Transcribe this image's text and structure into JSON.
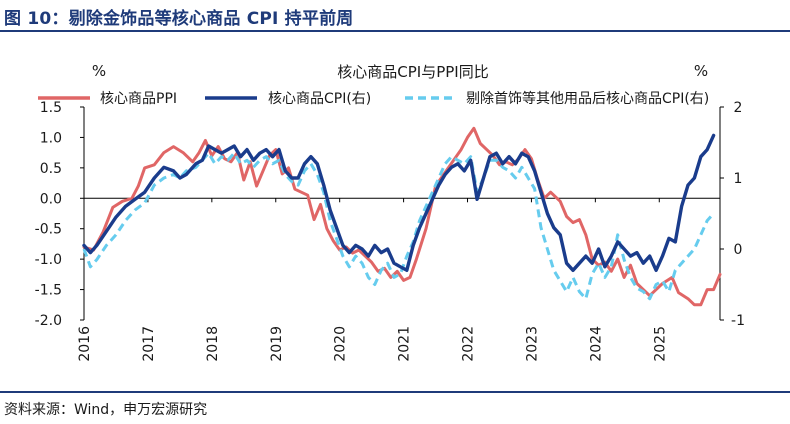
{
  "header": {
    "title": "图 10：剔除金饰品等核心商品 CPI 持平前周"
  },
  "footer": {
    "source": "资料来源：Wind，申万宏源研究"
  },
  "chart_data": {
    "type": "line",
    "title": "核心商品CPI与PPI同比",
    "left_unit": "%",
    "right_unit": "%",
    "left_ylim": [
      -2.0,
      1.5
    ],
    "right_ylim": [
      -1,
      2
    ],
    "left_ticks": [
      "1.5",
      "1.0",
      "0.5",
      "0.0",
      "-0.5",
      "-1.0",
      "-1.5",
      "-2.0"
    ],
    "right_ticks": [
      "2",
      "1",
      "0",
      "-1"
    ],
    "x_ticks": [
      "2016",
      "2017",
      "2018",
      "2019",
      "2020",
      "2021",
      "2022",
      "2023",
      "2024",
      "2025"
    ],
    "x_range": [
      2016.0,
      2025.95
    ],
    "legend": [
      "核心商品PPI",
      "核心商品CPI(右)",
      "剔除首饰等其他用品后核心商品CPI(右)"
    ],
    "series": [
      {
        "name": "核心商品PPI",
        "axis": "left",
        "color": "#e06666",
        "style": "solid",
        "points": [
          [
            2016.0,
            -0.8
          ],
          [
            2016.15,
            -0.85
          ],
          [
            2016.3,
            -0.55
          ],
          [
            2016.45,
            -0.15
          ],
          [
            2016.6,
            -0.05
          ],
          [
            2016.75,
            0.0
          ],
          [
            2016.85,
            0.2
          ],
          [
            2016.95,
            0.5
          ],
          [
            2017.1,
            0.55
          ],
          [
            2017.25,
            0.75
          ],
          [
            2017.4,
            0.85
          ],
          [
            2017.55,
            0.75
          ],
          [
            2017.7,
            0.6
          ],
          [
            2017.8,
            0.75
          ],
          [
            2017.9,
            0.95
          ],
          [
            2018.0,
            0.7
          ],
          [
            2018.1,
            0.85
          ],
          [
            2018.2,
            0.65
          ],
          [
            2018.3,
            0.6
          ],
          [
            2018.4,
            0.75
          ],
          [
            2018.5,
            0.3
          ],
          [
            2018.6,
            0.6
          ],
          [
            2018.7,
            0.2
          ],
          [
            2018.8,
            0.45
          ],
          [
            2018.9,
            0.7
          ],
          [
            2019.0,
            0.8
          ],
          [
            2019.1,
            0.4
          ],
          [
            2019.2,
            0.5
          ],
          [
            2019.3,
            0.15
          ],
          [
            2019.4,
            0.1
          ],
          [
            2019.5,
            0.05
          ],
          [
            2019.6,
            -0.35
          ],
          [
            2019.7,
            -0.1
          ],
          [
            2019.8,
            -0.5
          ],
          [
            2019.9,
            -0.7
          ],
          [
            2020.0,
            -0.85
          ],
          [
            2020.1,
            -0.8
          ],
          [
            2020.2,
            -0.9
          ],
          [
            2020.3,
            -0.85
          ],
          [
            2020.4,
            -0.95
          ],
          [
            2020.5,
            -1.05
          ],
          [
            2020.6,
            -1.2
          ],
          [
            2020.7,
            -1.15
          ],
          [
            2020.8,
            -1.3
          ],
          [
            2020.9,
            -1.2
          ],
          [
            2021.0,
            -1.35
          ],
          [
            2021.1,
            -1.3
          ],
          [
            2021.2,
            -1.0
          ],
          [
            2021.35,
            -0.5
          ],
          [
            2021.5,
            0.2
          ],
          [
            2021.6,
            0.35
          ],
          [
            2021.7,
            0.5
          ],
          [
            2021.8,
            0.65
          ],
          [
            2021.9,
            0.8
          ],
          [
            2022.0,
            1.0
          ],
          [
            2022.1,
            1.15
          ],
          [
            2022.2,
            0.9
          ],
          [
            2022.3,
            0.8
          ],
          [
            2022.4,
            0.7
          ],
          [
            2022.5,
            0.55
          ],
          [
            2022.6,
            0.6
          ],
          [
            2022.7,
            0.55
          ],
          [
            2022.8,
            0.65
          ],
          [
            2022.9,
            0.8
          ],
          [
            2023.0,
            0.65
          ],
          [
            2023.1,
            0.3
          ],
          [
            2023.2,
            0.0
          ],
          [
            2023.3,
            0.1
          ],
          [
            2023.45,
            -0.05
          ],
          [
            2023.55,
            -0.3
          ],
          [
            2023.65,
            -0.4
          ],
          [
            2023.75,
            -0.35
          ],
          [
            2023.85,
            -0.6
          ],
          [
            2023.95,
            -1.0
          ],
          [
            2024.05,
            -1.1
          ],
          [
            2024.15,
            -1.05
          ],
          [
            2024.25,
            -1.2
          ],
          [
            2024.35,
            -1.0
          ],
          [
            2024.45,
            -1.3
          ],
          [
            2024.55,
            -1.1
          ],
          [
            2024.65,
            -1.4
          ],
          [
            2024.75,
            -1.5
          ],
          [
            2024.85,
            -1.6
          ],
          [
            2024.95,
            -1.5
          ],
          [
            2025.05,
            -1.4
          ],
          [
            2025.2,
            -1.3
          ],
          [
            2025.3,
            -1.55
          ],
          [
            2025.45,
            -1.65
          ],
          [
            2025.55,
            -1.75
          ],
          [
            2025.65,
            -1.75
          ],
          [
            2025.75,
            -1.5
          ],
          [
            2025.85,
            -1.5
          ],
          [
            2025.95,
            -1.25
          ]
        ]
      },
      {
        "name": "核心商品CPI(右)",
        "axis": "right",
        "color": "#1a3c8c",
        "style": "solid",
        "points": [
          [
            2016.0,
            0.05
          ],
          [
            2016.1,
            -0.05
          ],
          [
            2016.2,
            0.05
          ],
          [
            2016.35,
            0.25
          ],
          [
            2016.5,
            0.45
          ],
          [
            2016.65,
            0.6
          ],
          [
            2016.8,
            0.7
          ],
          [
            2016.95,
            0.8
          ],
          [
            2017.1,
            1.0
          ],
          [
            2017.25,
            1.15
          ],
          [
            2017.4,
            1.1
          ],
          [
            2017.5,
            1.0
          ],
          [
            2017.6,
            1.05
          ],
          [
            2017.75,
            1.2
          ],
          [
            2017.85,
            1.25
          ],
          [
            2017.95,
            1.45
          ],
          [
            2018.05,
            1.4
          ],
          [
            2018.15,
            1.35
          ],
          [
            2018.25,
            1.4
          ],
          [
            2018.35,
            1.45
          ],
          [
            2018.45,
            1.3
          ],
          [
            2018.55,
            1.4
          ],
          [
            2018.65,
            1.25
          ],
          [
            2018.75,
            1.35
          ],
          [
            2018.85,
            1.4
          ],
          [
            2018.95,
            1.3
          ],
          [
            2019.05,
            1.4
          ],
          [
            2019.15,
            1.1
          ],
          [
            2019.25,
            1.0
          ],
          [
            2019.35,
            1.0
          ],
          [
            2019.45,
            1.2
          ],
          [
            2019.55,
            1.3
          ],
          [
            2019.65,
            1.2
          ],
          [
            2019.75,
            0.9
          ],
          [
            2019.85,
            0.55
          ],
          [
            2019.95,
            0.3
          ],
          [
            2020.05,
            0.05
          ],
          [
            2020.15,
            -0.05
          ],
          [
            2020.25,
            0.05
          ],
          [
            2020.35,
            0.0
          ],
          [
            2020.45,
            -0.1
          ],
          [
            2020.55,
            0.05
          ],
          [
            2020.65,
            -0.05
          ],
          [
            2020.75,
            0.0
          ],
          [
            2020.85,
            -0.2
          ],
          [
            2020.95,
            -0.25
          ],
          [
            2021.05,
            -0.3
          ],
          [
            2021.15,
            0.05
          ],
          [
            2021.25,
            0.3
          ],
          [
            2021.35,
            0.5
          ],
          [
            2021.45,
            0.7
          ],
          [
            2021.55,
            0.9
          ],
          [
            2021.65,
            1.05
          ],
          [
            2021.75,
            1.15
          ],
          [
            2021.85,
            1.2
          ],
          [
            2021.95,
            1.1
          ],
          [
            2022.05,
            1.25
          ],
          [
            2022.15,
            0.7
          ],
          [
            2022.25,
            1.0
          ],
          [
            2022.35,
            1.3
          ],
          [
            2022.45,
            1.35
          ],
          [
            2022.55,
            1.2
          ],
          [
            2022.65,
            1.3
          ],
          [
            2022.75,
            1.2
          ],
          [
            2022.85,
            1.35
          ],
          [
            2022.95,
            1.3
          ],
          [
            2023.05,
            1.1
          ],
          [
            2023.15,
            0.8
          ],
          [
            2023.25,
            0.5
          ],
          [
            2023.35,
            0.3
          ],
          [
            2023.45,
            0.2
          ],
          [
            2023.55,
            -0.2
          ],
          [
            2023.65,
            -0.3
          ],
          [
            2023.75,
            -0.2
          ],
          [
            2023.85,
            -0.1
          ],
          [
            2023.95,
            -0.2
          ],
          [
            2024.05,
            0.0
          ],
          [
            2024.15,
            -0.25
          ],
          [
            2024.25,
            -0.1
          ],
          [
            2024.35,
            0.1
          ],
          [
            2024.45,
            0.0
          ],
          [
            2024.55,
            -0.1
          ],
          [
            2024.65,
            -0.05
          ],
          [
            2024.75,
            -0.2
          ],
          [
            2024.85,
            -0.1
          ],
          [
            2024.95,
            -0.3
          ],
          [
            2025.05,
            -0.1
          ],
          [
            2025.15,
            0.15
          ],
          [
            2025.25,
            0.1
          ],
          [
            2025.35,
            0.6
          ],
          [
            2025.45,
            0.9
          ],
          [
            2025.55,
            1.0
          ],
          [
            2025.65,
            1.3
          ],
          [
            2025.75,
            1.4
          ],
          [
            2025.85,
            1.6
          ]
        ]
      },
      {
        "name": "剔除首饰等其他用品后核心商品CPI(右)",
        "axis": "right",
        "color": "#66ccee",
        "style": "dashed",
        "points": [
          [
            2016.0,
            0.0
          ],
          [
            2016.1,
            -0.25
          ],
          [
            2016.2,
            -0.15
          ],
          [
            2016.35,
            0.05
          ],
          [
            2016.5,
            0.2
          ],
          [
            2016.65,
            0.4
          ],
          [
            2016.8,
            0.55
          ],
          [
            2016.95,
            0.65
          ],
          [
            2017.1,
            0.9
          ],
          [
            2017.25,
            1.0
          ],
          [
            2017.4,
            1.05
          ],
          [
            2017.5,
            1.0
          ],
          [
            2017.6,
            1.1
          ],
          [
            2017.75,
            1.15
          ],
          [
            2017.85,
            1.25
          ],
          [
            2017.95,
            1.35
          ],
          [
            2018.05,
            1.2
          ],
          [
            2018.15,
            1.3
          ],
          [
            2018.25,
            1.25
          ],
          [
            2018.35,
            1.35
          ],
          [
            2018.45,
            1.2
          ],
          [
            2018.55,
            1.25
          ],
          [
            2018.65,
            1.15
          ],
          [
            2018.75,
            1.25
          ],
          [
            2018.85,
            1.3
          ],
          [
            2018.95,
            1.2
          ],
          [
            2019.05,
            1.25
          ],
          [
            2019.15,
            1.05
          ],
          [
            2019.25,
            0.95
          ],
          [
            2019.35,
            0.9
          ],
          [
            2019.45,
            1.1
          ],
          [
            2019.55,
            1.2
          ],
          [
            2019.65,
            1.05
          ],
          [
            2019.75,
            0.8
          ],
          [
            2019.85,
            0.4
          ],
          [
            2019.95,
            0.15
          ],
          [
            2020.05,
            -0.1
          ],
          [
            2020.15,
            -0.25
          ],
          [
            2020.25,
            -0.1
          ],
          [
            2020.35,
            -0.2
          ],
          [
            2020.45,
            -0.4
          ],
          [
            2020.55,
            -0.5
          ],
          [
            2020.65,
            -0.3
          ],
          [
            2020.75,
            -0.2
          ],
          [
            2020.85,
            -0.4
          ],
          [
            2020.95,
            -0.35
          ],
          [
            2021.05,
            -0.1
          ],
          [
            2021.15,
            0.1
          ],
          [
            2021.25,
            0.4
          ],
          [
            2021.35,
            0.6
          ],
          [
            2021.45,
            0.8
          ],
          [
            2021.55,
            1.0
          ],
          [
            2021.65,
            1.2
          ],
          [
            2021.75,
            1.3
          ],
          [
            2021.85,
            1.25
          ],
          [
            2021.95,
            1.2
          ],
          [
            2022.05,
            1.3
          ],
          [
            2022.15,
            0.8
          ],
          [
            2022.25,
            1.0
          ],
          [
            2022.35,
            1.25
          ],
          [
            2022.45,
            1.25
          ],
          [
            2022.55,
            1.15
          ],
          [
            2022.65,
            1.1
          ],
          [
            2022.75,
            1.0
          ],
          [
            2022.85,
            1.15
          ],
          [
            2022.95,
            1.0
          ],
          [
            2023.05,
            0.85
          ],
          [
            2023.15,
            0.3
          ],
          [
            2023.25,
            0.0
          ],
          [
            2023.35,
            -0.3
          ],
          [
            2023.45,
            -0.45
          ],
          [
            2023.55,
            -0.6
          ],
          [
            2023.65,
            -0.4
          ],
          [
            2023.75,
            -0.6
          ],
          [
            2023.85,
            -0.7
          ],
          [
            2023.95,
            -0.35
          ],
          [
            2024.05,
            -0.2
          ],
          [
            2024.15,
            -0.4
          ],
          [
            2024.25,
            -0.25
          ],
          [
            2024.35,
            0.2
          ],
          [
            2024.45,
            -0.15
          ],
          [
            2024.55,
            -0.4
          ],
          [
            2024.65,
            -0.55
          ],
          [
            2024.75,
            -0.6
          ],
          [
            2024.85,
            -0.7
          ],
          [
            2024.95,
            -0.5
          ],
          [
            2025.05,
            -0.45
          ],
          [
            2025.15,
            -0.6
          ],
          [
            2025.25,
            -0.3
          ],
          [
            2025.35,
            -0.2
          ],
          [
            2025.45,
            -0.1
          ],
          [
            2025.55,
            0.0
          ],
          [
            2025.65,
            0.2
          ],
          [
            2025.75,
            0.4
          ],
          [
            2025.85,
            0.5
          ]
        ]
      }
    ]
  }
}
